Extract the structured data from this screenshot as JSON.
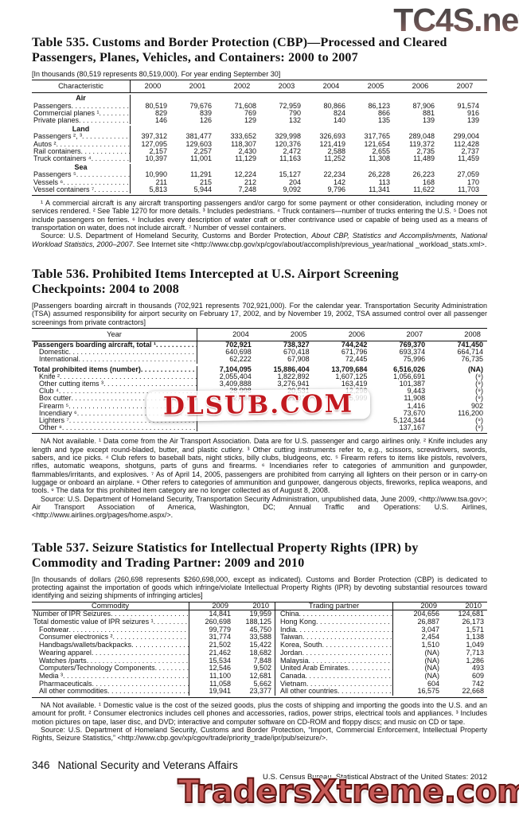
{
  "watermarks": {
    "top": "TC4S.net",
    "middle": "DLSUB.COM",
    "bottom": "TradersXtreme.com"
  },
  "table535": {
    "title": "Table 535. Customs and Border Protection (CBP)—Processed and Cleared\nPassengers, Planes, Vehicles, and Containers: 2000 to 2007",
    "headnote": "[In thousands (80,519 represents 80,519,000). For year ending September 30]",
    "columns": [
      "Characteristic",
      "2000",
      "2001",
      "2002",
      "2003",
      "2004",
      "2005",
      "2006",
      "2007"
    ],
    "sections": [
      {
        "name": "Air",
        "rows": [
          {
            "label": "Passengers",
            "values": [
              "80,519",
              "79,676",
              "71,608",
              "72,959",
              "80,866",
              "86,123",
              "87,906",
              "91,574"
            ]
          },
          {
            "label": "Commercial planes ¹",
            "values": [
              "829",
              "839",
              "769",
              "790",
              "824",
              "866",
              "881",
              "916"
            ]
          },
          {
            "label": "Private planes",
            "values": [
              "146",
              "126",
              "129",
              "132",
              "140",
              "135",
              "139",
              "139"
            ]
          }
        ]
      },
      {
        "name": "Land",
        "rows": [
          {
            "label": "Passengers ², ³",
            "values": [
              "397,312",
              "381,477",
              "333,652",
              "329,998",
              "326,693",
              "317,765",
              "289,048",
              "299,004"
            ]
          },
          {
            "label": "Autos ²",
            "values": [
              "127,095",
              "129,603",
              "118,307",
              "120,376",
              "121,419",
              "121,654",
              "119,372",
              "112,428"
            ]
          },
          {
            "label": "Rail containers",
            "values": [
              "2,157",
              "2,257",
              "2,430",
              "2,472",
              "2,588",
              "2,655",
              "2,735",
              "2,737"
            ]
          },
          {
            "label": "Truck containers ⁴",
            "values": [
              "10,397",
              "11,001",
              "11,129",
              "11,163",
              "11,252",
              "11,308",
              "11,489",
              "11,459"
            ]
          }
        ]
      },
      {
        "name": "Sea",
        "rows": [
          {
            "label": "Passengers ⁵",
            "values": [
              "10,990",
              "11,291",
              "12,224",
              "15,127",
              "22,234",
              "26,228",
              "26,223",
              "27,059"
            ]
          },
          {
            "label": "Vessels ⁶",
            "values": [
              "211",
              "215",
              "212",
              "204",
              "142",
              "113",
              "168",
              "170"
            ]
          },
          {
            "label": "Vessel containers ⁷",
            "values": [
              "5,813",
              "5,944",
              "7,248",
              "9,092",
              "9,796",
              "11,341",
              "11,622",
              "11,703"
            ]
          }
        ]
      }
    ],
    "footnote": "¹ A commercial aircraft is any aircraft transporting passengers and/or cargo for some payment or other consideration, including money or services rendered. ² See Table 1270 for more details. ³ Includes pedestrians. ⁴ Truck containers—number of trucks entering the U.S. ⁵ Does not include passengers on ferries. ⁶ Includes every description of water craft or other contrivance used or capable of being used as a means of transportation on water, does not include aircraft. ⁷ Number of vessel containers.",
    "source_pre": "Source: U.S. Department of Homeland Security, Customs and Border Protection, ",
    "source_italic": "About CBP, Statistics and Accomplishments, National Workload Statistics, 2000–2007",
    "source_post": ". See Internet site <http://www.cbp.gov/xp/cgov/about/accomplish/previous_year/national _workload_stats.xml>."
  },
  "table536": {
    "title": "Table 536. Prohibited Items Intercepted at U.S. Airport Screening\nCheckpoints: 2004 to 2008",
    "headnote": "[Passengers boarding aircraft in thousands (702,921 represents 702,921,000). For the calendar year. Transportation Security Administration (TSA) assumed responsibility for airport security on February 17, 2002, and by November 19, 2002, TSA assumed control over all passenger screenings from private contractors]",
    "columns": [
      "Year",
      "2004",
      "2005",
      "2006",
      "2007",
      "2008"
    ],
    "rows": [
      {
        "label": "Passengers boarding aircraft, total ¹",
        "bold": true,
        "values": [
          "702,921",
          "738,327",
          "744,242",
          "769,370",
          "741,450"
        ]
      },
      {
        "label": "Domestic",
        "indent": true,
        "values": [
          "640,698",
          "670,418",
          "671,796",
          "693,374",
          "664,714"
        ]
      },
      {
        "label": "International",
        "indent": true,
        "values": [
          "62,222",
          "67,908",
          "72,445",
          "75,996",
          "76,735"
        ]
      },
      {
        "label": "Total prohibited items (number)",
        "bold": true,
        "gap": true,
        "values": [
          "7,104,095",
          "15,886,404",
          "13,709,684",
          "6,516,026",
          "(NA)"
        ]
      },
      {
        "label": "Knife ²",
        "indent": true,
        "values": [
          "2,055,404",
          "1,822,892",
          "1,607,125",
          "1,056,691",
          "(⁹)"
        ]
      },
      {
        "label": "Other cutting items ³",
        "indent": true,
        "values": [
          "3,409,888",
          "3,276,941",
          "163,419",
          "101,387",
          "(⁹)"
        ]
      },
      {
        "label": "Club ⁴",
        "indent": true,
        "values": [
          "28,998",
          "20,531",
          "12,296",
          "9,443",
          "(⁹)"
        ]
      },
      {
        "label": "Box cutter",
        "indent": true,
        "values": [
          "22,430",
          "21,319",
          "15,999",
          "11,908",
          "(⁹)"
        ]
      },
      {
        "label": "Firearm ⁵",
        "indent": true,
        "values": [
          "",
          "",
          "",
          "1,416",
          "902"
        ]
      },
      {
        "label": "Incendiary ⁶",
        "indent": true,
        "values": [
          "",
          "",
          "",
          "73,670",
          "116,200"
        ]
      },
      {
        "label": "Lighters ⁷",
        "indent": true,
        "values": [
          "",
          "",
          "",
          "5,124,344",
          "(⁹)"
        ]
      },
      {
        "label": "Other ⁸",
        "indent": true,
        "values": [
          "",
          "",
          "",
          "137,167",
          "(⁹)"
        ]
      }
    ],
    "footnote": "NA Not available. ¹ Data come from the Air Transport Association. Data are for U.S. passenger and cargo airlines only. ² Knife includes any length and type except round-bladed, butter, and plastic cutlery. ³ Other cutting instruments refer to, e.g., scissors, screwdrivers, swords, sabers, and ice picks. ⁴ Club refers to baseball bats, night sticks, billy clubs, bludgeons, etc. ⁵ Firearm refers to items like pistols, revolvers, rifles, automatic weapons, shotguns, parts of guns and firearms. ⁶ Incendiaries refer to categories of ammunition and gunpowder, flammables/irritants, and explosives. ⁷ As of April 14, 2005, passengers are prohibited from carrying all lighters on their person or in carry-on luggage or onboard an airplane. ⁸ Other refers to categories of ammunition and gunpower, dangerous objects, fireworks, replica weapons, and tools. ⁹ The data for this prohibited item category are no longer collected as of August 8, 2008.",
    "source": "Source: U.S. Department of Homeland Security, Transportation Security Administration, unpublished data, June 2009, <http://www.tsa.gov>; Air Transport Association of America, Washington, DC; Annual Traffic and Operations: U.S. Airlines, <http://www.airlines.org/pages/home.aspx/>."
  },
  "table537": {
    "title": "Table 537. Seizure Statistics for Intellectual Property Rights (IPR) by\nCommodity and Trading Partner: 2009 and 2010",
    "headnote": "[In thousands of dollars (260,698 represents $260,698,000, except as indicated). Customs and Border Protection (CBP) is dedicated to protecting against the importation of goods which infringe/violate Intellectual Property Rights (IPR) by devoting substantial resources toward identifying and seizing shipments of infringing articles]",
    "columns": [
      "Commodity",
      "2009",
      "2010",
      "Trading partner",
      "2009",
      "2010"
    ],
    "commodity_rows": [
      {
        "label": "Number of IPR Seizures",
        "values": [
          "14,841",
          "19,959"
        ]
      },
      {
        "label": "Total domestic value of IPR seizures ¹",
        "values": [
          "260,698",
          "188,125"
        ]
      },
      {
        "label": "Footwear",
        "indent": true,
        "values": [
          "99,779",
          "45,750"
        ]
      },
      {
        "label": "Consumer electronics ²",
        "indent": true,
        "values": [
          "31,774",
          "33,588"
        ]
      },
      {
        "label": "Handbags/wallets/backpacks",
        "indent": true,
        "values": [
          "21,502",
          "15,422"
        ]
      },
      {
        "label": "Wearing apparel",
        "indent": true,
        "values": [
          "21,462",
          "18,682"
        ]
      },
      {
        "label": "Watches /parts",
        "indent": true,
        "values": [
          "15,534",
          "7,848"
        ]
      },
      {
        "label": "Computers/Technology Components",
        "indent": true,
        "values": [
          "12,546",
          "9,502"
        ]
      },
      {
        "label": "Media ³",
        "indent": true,
        "values": [
          "11,100",
          "12,681"
        ]
      },
      {
        "label": "Pharmaceuticals",
        "indent": true,
        "values": [
          "11,058",
          "5,662"
        ]
      },
      {
        "label": "All other commodities",
        "indent": true,
        "values": [
          "19,941",
          "23,377"
        ]
      }
    ],
    "partner_rows": [
      {
        "label": "China",
        "values": [
          "204,656",
          "124,681"
        ]
      },
      {
        "label": "Hong Kong",
        "values": [
          "26,887",
          "26,173"
        ]
      },
      {
        "label": "India",
        "values": [
          "3,047",
          "1,571"
        ]
      },
      {
        "label": "Taiwan",
        "values": [
          "2,454",
          "1,138"
        ]
      },
      {
        "label": "Korea, South",
        "values": [
          "1,510",
          "1,049"
        ]
      },
      {
        "label": "Jordan",
        "values": [
          "(NA)",
          "7,713"
        ]
      },
      {
        "label": "Malaysia",
        "values": [
          "(NA)",
          "1,286"
        ]
      },
      {
        "label": "United Arab Emirates",
        "values": [
          "(NA)",
          "493"
        ]
      },
      {
        "label": "Canada",
        "values": [
          "(NA)",
          "609"
        ]
      },
      {
        "label": "Vietnam",
        "values": [
          "604",
          "742"
        ]
      },
      {
        "label": "All other countries",
        "values": [
          "16,575",
          "22,668"
        ]
      }
    ],
    "footnote": "NA Not available. ¹ Domestic value is the cost of the seized goods, plus the costs of shipping and importing the goods into the U.S. and an amount for profit. ² Consumer electronics includes cell phones and accessories, radios, power strips, electrical tools and appliances. ³ Includes motion pictures on tape, laser disc, and DVD; interactive and computer software on CD-ROM and floppy discs; and music on CD or tape.",
    "source": "Source: U.S. Department of Homeland Security, Customs and Border Protection, “Import, Commercial Enforcement, Intellectual Property Rights, Seizure Statistics,” <http://www.cbp.gov/xp/cgov/trade/priority_trade/ipr/pub/seizure/>."
  },
  "footer": {
    "page": "346",
    "section": "National Security and Veterans Affairs",
    "credit": "U.S. Census Bureau, Statistical Abstract of the United States: 2012"
  }
}
